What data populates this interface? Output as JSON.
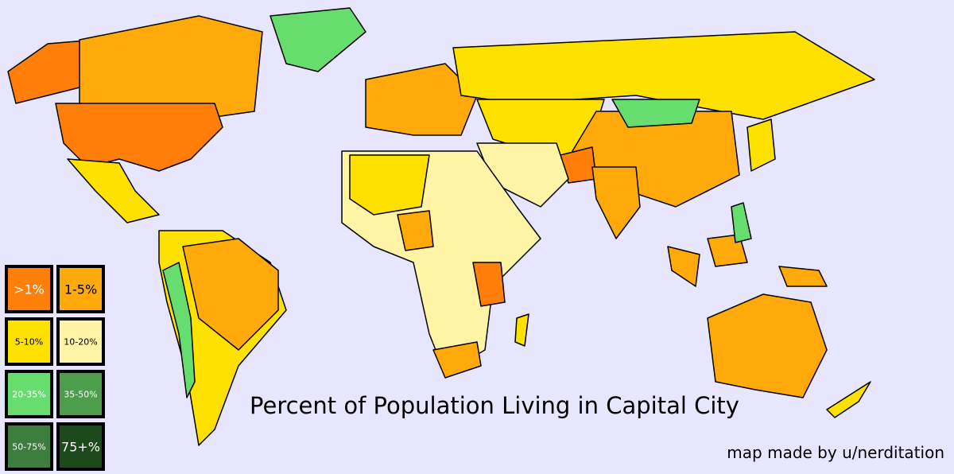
{
  "title": "Percent of Population Living in Capital City",
  "credit": "map made by u/nerditation",
  "legend": [
    {
      "label": ">1%",
      "color": "#ff7f0a"
    },
    {
      "label": "1-5%",
      "color": "#ffaa0a"
    },
    {
      "label": "5-10%",
      "color": "#ffe100"
    },
    {
      "label": "10-20%",
      "color": "#fff3a6"
    },
    {
      "label": "20-35%",
      "color": "#66dd6e"
    },
    {
      "label": "35-50%",
      "color": "#4c9d4c"
    },
    {
      "label": "50-75%",
      "color": "#3d7d3d"
    },
    {
      "label": "75+%",
      "color": "#1d4a1d"
    }
  ]
}
